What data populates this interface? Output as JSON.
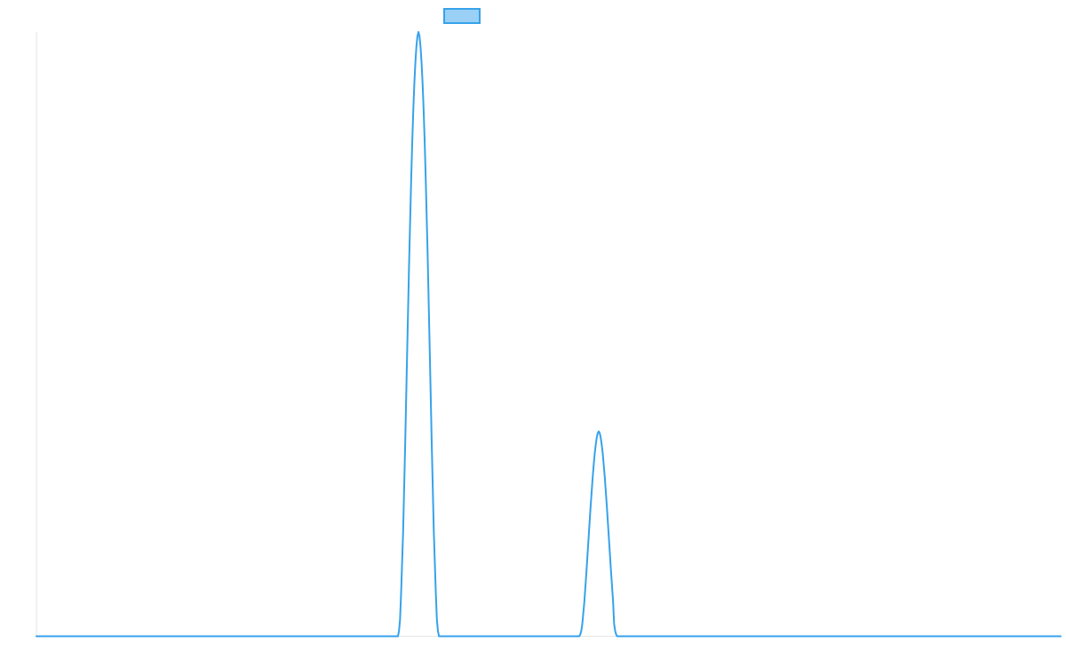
{
  "chart_data": {
    "type": "line",
    "title": "",
    "xlabel": "",
    "ylabel": "",
    "xlim": [
      0,
      1000
    ],
    "ylim": [
      0,
      100
    ],
    "grid": false,
    "legend": {
      "placement": "top-center",
      "show_label": false
    },
    "series": [
      {
        "color": "#36a2eb",
        "fill_color": "#9ad0f5",
        "x": [
          0,
          353,
          354,
          355,
          356,
          358,
          360,
          362,
          364,
          366,
          367,
          368,
          369,
          370,
          371,
          372,
          373,
          374,
          375,
          376,
          377,
          378,
          379,
          380,
          382,
          384,
          386,
          388,
          390,
          391,
          392,
          393,
          530,
          531,
          532,
          533,
          535,
          537,
          539,
          541,
          543,
          544,
          545,
          546,
          547,
          548,
          549,
          550,
          551,
          552,
          553,
          555,
          557,
          559,
          561,
          563,
          564,
          565,
          566,
          567,
          568,
          1000
        ],
        "values": [
          0,
          0,
          0.9,
          2.7,
          6.9,
          17.2,
          31.5,
          47.4,
          62.8,
          76.3,
          82.2,
          87.3,
          91.6,
          95.0,
          97.6,
          99.3,
          100,
          99.3,
          97.6,
          95.0,
          91.6,
          87.3,
          82.2,
          76.3,
          62.8,
          47.4,
          31.5,
          17.2,
          6.9,
          2.7,
          0.9,
          0,
          0,
          0.3,
          0.9,
          2.1,
          5.8,
          10.7,
          16.0,
          21.3,
          26.1,
          28.2,
          30.1,
          31.6,
          32.8,
          33.6,
          33.9,
          33.6,
          32.8,
          31.6,
          30.1,
          26.1,
          21.3,
          16.0,
          10.7,
          5.8,
          2.1,
          0.9,
          0.3,
          0,
          0,
          0
        ]
      }
    ]
  }
}
